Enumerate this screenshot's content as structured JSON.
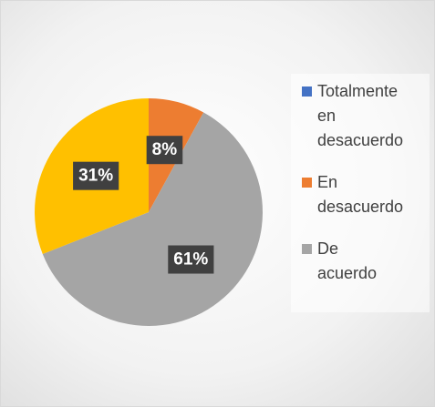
{
  "chart_data": {
    "type": "pie",
    "categories": [
      "Totalmente en desacuerdo",
      "En desacuerdo",
      "De acuerdo",
      null
    ],
    "values": [
      0,
      8,
      61,
      31
    ],
    "value_labels": [
      null,
      "8%",
      "61%",
      "31%"
    ],
    "colors": [
      "#4472c4",
      "#ed7d31",
      "#a5a5a5",
      "#ffc000"
    ],
    "legend": "right"
  }
}
